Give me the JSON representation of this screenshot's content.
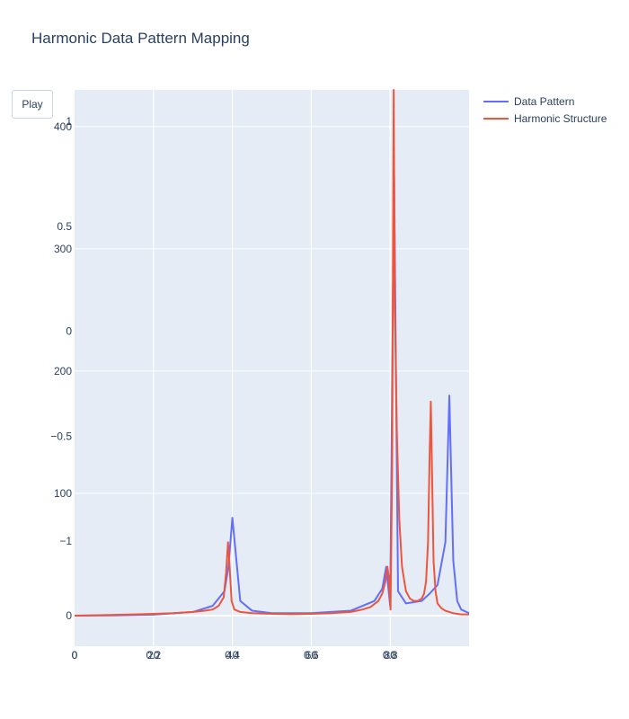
{
  "title": "Harmonic Data Pattern Mapping",
  "controls": {
    "play_label": "Play"
  },
  "chart_data": {
    "type": "line",
    "x_axes": [
      {
        "ticks": [
          0,
          20,
          40,
          60,
          80
        ],
        "range": [
          0,
          100
        ]
      },
      {
        "ticks": [
          0,
          0.2,
          0.4,
          0.6,
          0.8
        ],
        "range": [
          0,
          1
        ]
      }
    ],
    "y_axes": [
      {
        "ticks": [
          0,
          100,
          200,
          300,
          400
        ],
        "range": [
          -25,
          430
        ]
      },
      {
        "ticks": [
          -1,
          -0.5,
          0,
          0.5,
          1
        ],
        "range": [
          -1.5,
          1.15
        ]
      }
    ],
    "series": [
      {
        "name": "Data Pattern",
        "color": "#636efa",
        "x": [
          0,
          10,
          20,
          30,
          35,
          38,
          39,
          40,
          42,
          45,
          50,
          60,
          70,
          76,
          78,
          79,
          80,
          81,
          82,
          84,
          88,
          90,
          92,
          94,
          95,
          96,
          97,
          98,
          100
        ],
        "y": [
          0,
          0.2,
          0.8,
          3,
          8,
          20,
          40,
          80,
          12,
          4,
          2,
          2,
          4,
          12,
          22,
          40,
          8,
          360,
          20,
          10,
          12,
          18,
          25,
          60,
          180,
          45,
          12,
          5,
          2
        ]
      },
      {
        "name": "Harmonic Structure",
        "color": "#ef553b",
        "x": [
          0,
          5,
          10,
          15,
          20,
          25,
          30,
          33,
          35,
          36.5,
          37.8,
          38.4,
          38.9,
          39.3,
          39.8,
          40.5,
          42,
          45,
          50,
          55,
          60,
          65,
          70,
          73,
          75,
          77,
          78,
          78.8,
          79.3,
          79.7,
          80.1,
          80.5,
          80.9,
          81.2,
          81.7,
          82.3,
          83,
          84,
          85,
          86,
          87,
          88,
          88.6,
          89.1,
          89.6,
          90,
          90.3,
          90.6,
          91,
          91.5,
          92,
          93,
          94,
          96,
          98,
          100
        ],
        "y": [
          0,
          0.3,
          0.6,
          1,
          1.5,
          2,
          3,
          4,
          5,
          8,
          15,
          35,
          60,
          40,
          12,
          5,
          3,
          2,
          1.5,
          1.2,
          1.5,
          2,
          3,
          5,
          7,
          12,
          18,
          28,
          40,
          30,
          5,
          120,
          430,
          250,
          150,
          80,
          40,
          20,
          14,
          12,
          12,
          14,
          18,
          28,
          60,
          130,
          175,
          120,
          45,
          20,
          10,
          6,
          4,
          2,
          1,
          1
        ]
      }
    ],
    "legend_placement": "top-right",
    "grid": true
  }
}
